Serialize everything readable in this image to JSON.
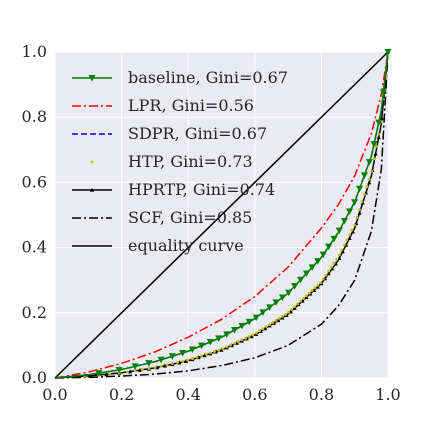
{
  "chart_data": {
    "type": "line",
    "title": "",
    "xlabel": "",
    "ylabel": "",
    "xlim": [
      0.0,
      1.0
    ],
    "ylim": [
      0.0,
      1.0
    ],
    "xticks": [
      "0.0",
      "0.2",
      "0.4",
      "0.6",
      "0.8",
      "1.0"
    ],
    "yticks": [
      "0.0",
      "0.2",
      "0.4",
      "0.6",
      "0.8",
      "1.0"
    ],
    "grid": true,
    "background": "#eaeaf2",
    "legend_position": "upper-left",
    "series": [
      {
        "name": "baseline, Gini=0.67",
        "color": "#008000",
        "dash": "solid",
        "marker": "triangle-down",
        "x": [
          0,
          0.1,
          0.2,
          0.3,
          0.4,
          0.5,
          0.6,
          0.7,
          0.8,
          0.85,
          0.9,
          0.95,
          0.98,
          1.0
        ],
        "y": [
          0,
          0.01,
          0.026,
          0.05,
          0.082,
          0.125,
          0.182,
          0.26,
          0.37,
          0.445,
          0.54,
          0.68,
          0.82,
          1.0
        ]
      },
      {
        "name": "LPR, Gini=0.56",
        "color": "#ff0000",
        "dash": "dashdot",
        "marker": "none",
        "x": [
          0,
          0.1,
          0.2,
          0.3,
          0.4,
          0.5,
          0.6,
          0.7,
          0.8,
          0.85,
          0.9,
          0.95,
          0.98,
          1.0
        ],
        "y": [
          0,
          0.018,
          0.045,
          0.08,
          0.125,
          0.18,
          0.25,
          0.34,
          0.46,
          0.53,
          0.62,
          0.75,
          0.87,
          1.0
        ]
      },
      {
        "name": "SDPR, Gini=0.67",
        "color": "#0000ff",
        "dash": "dashed",
        "marker": "none",
        "x": [
          0,
          0.1,
          0.2,
          0.3,
          0.4,
          0.5,
          0.6,
          0.7,
          0.8,
          0.85,
          0.9,
          0.95,
          0.98,
          1.0
        ],
        "y": [
          0,
          0.01,
          0.026,
          0.05,
          0.082,
          0.125,
          0.182,
          0.26,
          0.37,
          0.445,
          0.54,
          0.68,
          0.82,
          1.0
        ]
      },
      {
        "name": "HTP, Gini=0.73",
        "color": "#bfbf00",
        "dash": "none",
        "marker": "point",
        "x": [
          0,
          0.1,
          0.2,
          0.3,
          0.4,
          0.5,
          0.6,
          0.7,
          0.8,
          0.85,
          0.9,
          0.95,
          0.98,
          1.0
        ],
        "y": [
          0,
          0.006,
          0.016,
          0.032,
          0.055,
          0.088,
          0.135,
          0.2,
          0.295,
          0.37,
          0.47,
          0.63,
          0.79,
          1.0
        ]
      },
      {
        "name": "HPRTP, Gini=0.74",
        "color": "#000000",
        "dash": "solid",
        "marker": "small-triangle",
        "x": [
          0,
          0.1,
          0.2,
          0.3,
          0.4,
          0.5,
          0.6,
          0.7,
          0.8,
          0.85,
          0.9,
          0.95,
          0.98,
          1.0
        ],
        "y": [
          0,
          0.006,
          0.016,
          0.031,
          0.053,
          0.086,
          0.132,
          0.196,
          0.29,
          0.36,
          0.46,
          0.62,
          0.78,
          1.0
        ]
      },
      {
        "name": "SCF, Gini=0.85",
        "color": "#000000",
        "dash": "dashdot",
        "marker": "none",
        "x": [
          0,
          0.1,
          0.2,
          0.3,
          0.4,
          0.5,
          0.6,
          0.7,
          0.8,
          0.85,
          0.9,
          0.95,
          0.98,
          1.0
        ],
        "y": [
          0,
          0.002,
          0.006,
          0.012,
          0.022,
          0.038,
          0.062,
          0.1,
          0.165,
          0.22,
          0.3,
          0.45,
          0.64,
          1.0
        ]
      },
      {
        "name": "equality curve",
        "color": "#000000",
        "dash": "solid",
        "marker": "none",
        "x": [
          0,
          1.0
        ],
        "y": [
          0,
          1.0
        ]
      }
    ]
  }
}
